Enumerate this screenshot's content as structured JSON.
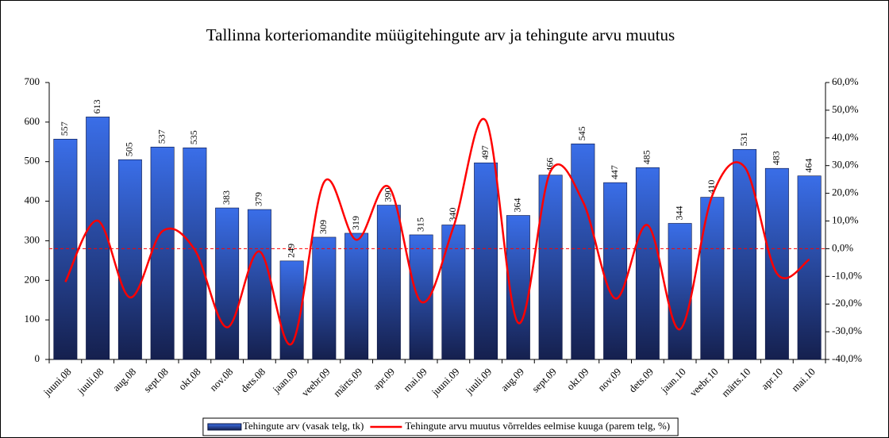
{
  "chart_data": {
    "type": "bar-line",
    "title": "Tallinna korteriomandite müügitehingute arv ja tehingute arvu muutus",
    "categories": [
      "juuni.08",
      "juuli.08",
      "aug.08",
      "sept.08",
      "okt.08",
      "nov.08",
      "dets.08",
      "jaan.09",
      "veebr.09",
      "märts.09",
      "apr.09",
      "mai.09",
      "juuni.09",
      "juuli.09",
      "aug.09",
      "sept.09",
      "okt.09",
      "nov.09",
      "dets.09",
      "jaan.10",
      "veebr.10",
      "märts.10",
      "apr.10",
      "mai.10"
    ],
    "series": [
      {
        "name": "Tehingute arv (vasak telg, tk)",
        "color": "#3a6ee8",
        "axis": "y",
        "values": [
          557,
          613,
          505,
          537,
          535,
          383,
          379,
          249,
          309,
          319,
          390,
          315,
          340,
          497,
          364,
          466,
          545,
          447,
          485,
          344,
          410,
          531,
          483,
          464
        ]
      },
      {
        "name": "Tehingute arvu muutus võrreldes eelmise kuuga (parem telg, %)",
        "color": "#ff0000",
        "axis": "y2",
        "values": [
          -12,
          10.1,
          -17.6,
          6.3,
          -0.4,
          -28.4,
          -1.0,
          -34.3,
          24.1,
          3.2,
          22.3,
          -19.2,
          7.9,
          46.2,
          -26.8,
          28.0,
          17.0,
          -18.0,
          8.5,
          -29.1,
          19.2,
          29.5,
          -9.0,
          -3.9
        ]
      }
    ],
    "ylim": [
      0,
      700
    ],
    "yticks": [
      0,
      100,
      200,
      300,
      400,
      500,
      600,
      700
    ],
    "y2lim": [
      -40,
      60
    ],
    "y2ticks": [
      {
        "value": -40,
        "label": "-40,0%"
      },
      {
        "value": -30,
        "label": "-30,0%"
      },
      {
        "value": -20,
        "label": "-20,0%"
      },
      {
        "value": -10,
        "label": "-10,0%"
      },
      {
        "value": 0,
        "label": "0,0%"
      },
      {
        "value": 10,
        "label": "10,0%"
      },
      {
        "value": 20,
        "label": "20,0%"
      },
      {
        "value": 30,
        "label": "30,0%"
      },
      {
        "value": 40,
        "label": "40,0%"
      },
      {
        "value": 50,
        "label": "50,0%"
      },
      {
        "value": 60,
        "label": "60,0%"
      }
    ],
    "y2_zero_line": true,
    "legend": "bottom"
  }
}
